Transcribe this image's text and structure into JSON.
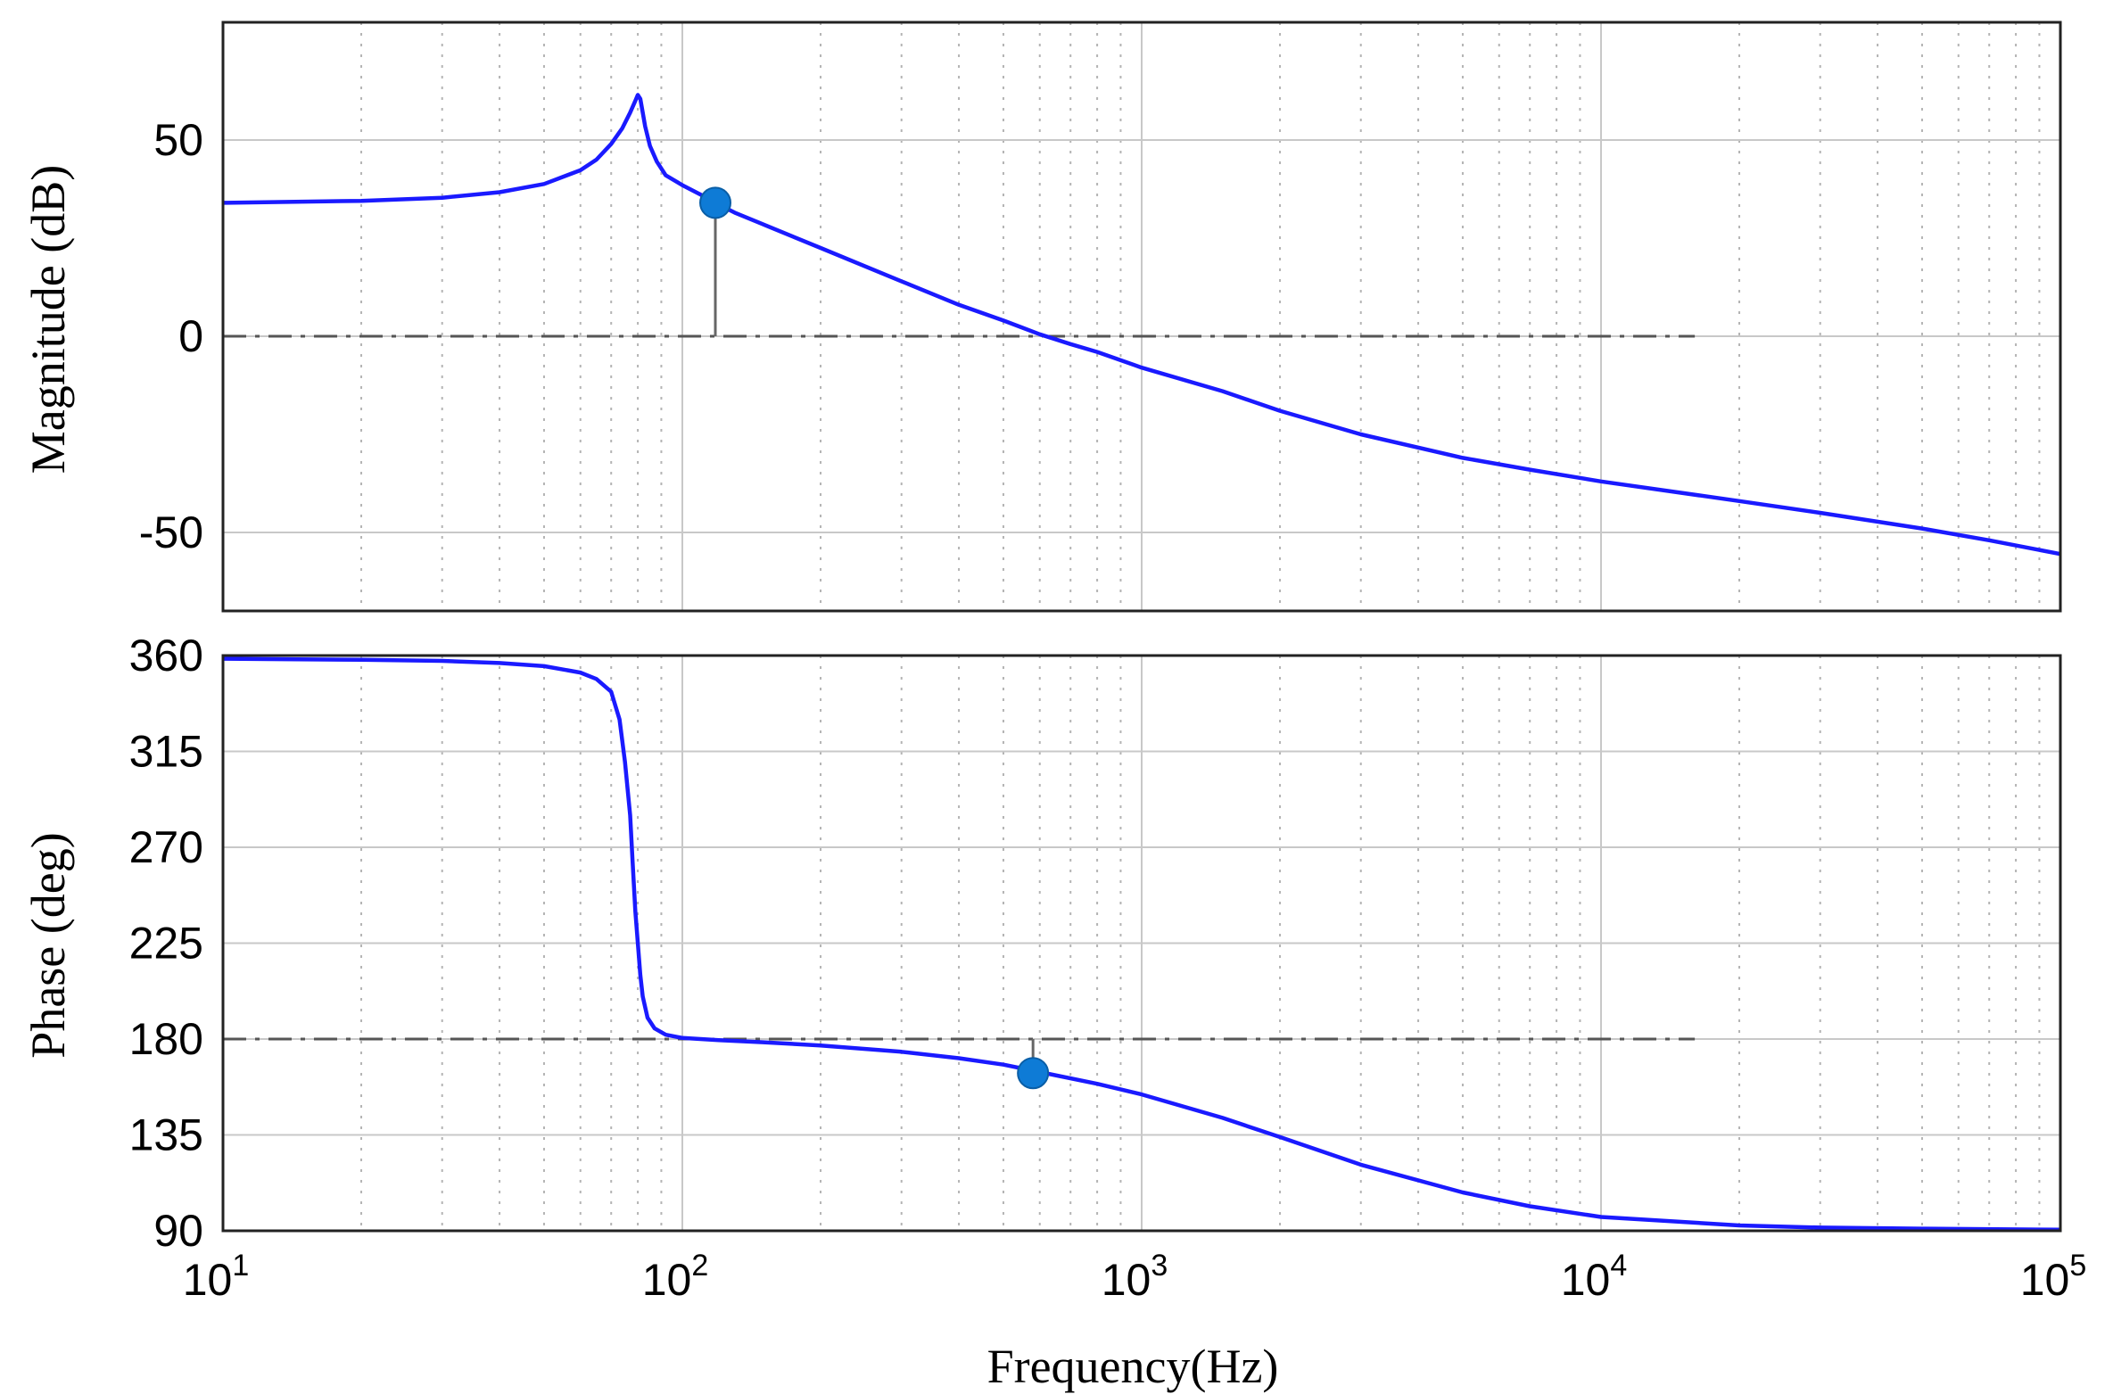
{
  "chart_data": [
    {
      "type": "line",
      "panel": "magnitude",
      "title": "",
      "xlabel": "",
      "ylabel": "Magnitude (dB)",
      "xscale": "log",
      "xlim": [
        10,
        100000
      ],
      "ylim": [
        -70,
        80
      ],
      "yticks": [
        50,
        0,
        -50
      ],
      "ytick_labels": [
        "50",
        "0",
        "-50"
      ],
      "grid": true,
      "reference_line": {
        "y": 0,
        "x_range": [
          10,
          16000
        ],
        "style": "dash-dot"
      },
      "marker": {
        "x": 118,
        "y": 34
      },
      "color": "#1a1aff",
      "marker_color": "#0e7bd6",
      "series": [
        {
          "x": [
            10,
            20,
            30,
            40,
            50,
            60,
            65,
            70,
            74,
            77,
            79,
            80,
            81,
            82,
            83,
            85,
            88,
            92,
            100,
            110,
            118,
            130,
            150,
            200,
            300,
            400,
            500,
            600,
            700,
            800,
            1000,
            1500,
            2000,
            3000,
            5000,
            7000,
            10000,
            20000,
            30000,
            50000,
            70000,
            100000
          ],
          "values": [
            34,
            34.5,
            35.3,
            36.7,
            38.8,
            42.3,
            45,
            49,
            53,
            57,
            60,
            61.5,
            60.5,
            57,
            53.5,
            48.5,
            44.5,
            41,
            38.5,
            36,
            34,
            31.5,
            28.5,
            22.5,
            14,
            8,
            4,
            0.5,
            -2,
            -4,
            -8,
            -14,
            -19,
            -25,
            -31,
            -34,
            -37,
            -42,
            -45,
            -49,
            -52,
            -55.5
          ]
        }
      ]
    },
    {
      "type": "line",
      "panel": "phase",
      "title": "",
      "xlabel": "Frequency(Hz)",
      "ylabel": "Phase (deg)",
      "xscale": "log",
      "xlim": [
        10,
        100000
      ],
      "ylim": [
        90,
        360
      ],
      "yticks": [
        360,
        315,
        270,
        225,
        180,
        135,
        90
      ],
      "ytick_labels": [
        "360",
        "315",
        "270",
        "225",
        "180",
        "135",
        "90"
      ],
      "xticks": [
        10,
        100,
        1000,
        10000,
        100000
      ],
      "xtick_labels": [
        {
          "base": "10",
          "exp": "1"
        },
        {
          "base": "10",
          "exp": "2"
        },
        {
          "base": "10",
          "exp": "3"
        },
        {
          "base": "10",
          "exp": "4"
        },
        {
          "base": "10",
          "exp": "5"
        }
      ],
      "grid": true,
      "reference_line": {
        "y": 180,
        "x_range": [
          10,
          16000
        ],
        "style": "dash-dot"
      },
      "marker": {
        "x": 580,
        "y": 164
      },
      "color": "#1a1aff",
      "marker_color": "#0e7bd6",
      "series": [
        {
          "x": [
            10,
            20,
            30,
            40,
            50,
            60,
            65,
            70,
            73,
            75,
            77,
            78,
            79,
            80,
            81,
            82,
            84,
            87,
            92,
            100,
            120,
            150,
            200,
            300,
            400,
            500,
            600,
            800,
            1000,
            1500,
            2000,
            3000,
            5000,
            7000,
            10000,
            20000,
            30000,
            50000,
            100000
          ],
          "values": [
            358.5,
            358,
            357.5,
            356.5,
            355,
            352,
            349,
            343,
            330,
            310,
            285,
            262,
            240,
            225,
            210,
            200,
            190,
            185,
            182,
            180.5,
            179.5,
            178.5,
            177,
            174,
            171,
            168,
            164.5,
            159,
            154,
            143,
            134,
            121,
            108,
            101.5,
            96.5,
            92.5,
            91.5,
            91,
            90.5
          ]
        }
      ]
    }
  ]
}
